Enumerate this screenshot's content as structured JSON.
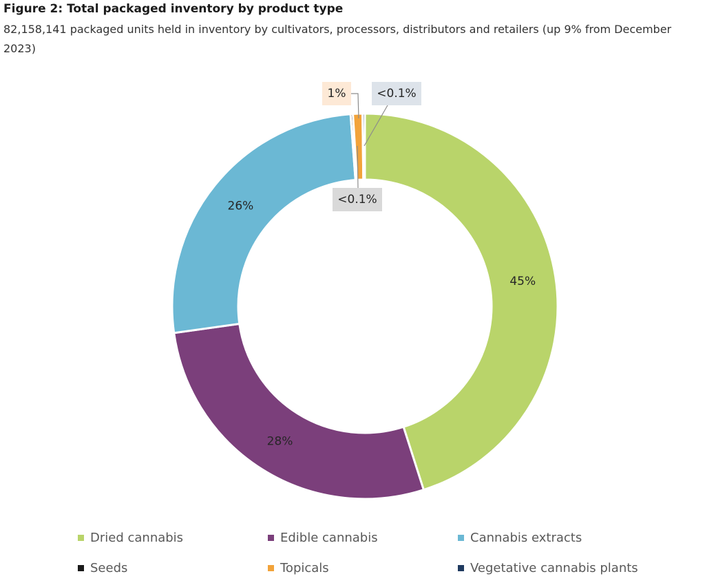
{
  "figure": {
    "title": "Figure 2: Total packaged inventory by product type",
    "subtitle": "82,158,141 packaged units held in inventory by cultivators, processors, distributors and retailers (up 9% from December 2023)"
  },
  "chart_data": {
    "type": "pie",
    "donut": true,
    "title": "Figure 2: Total packaged inventory by product type",
    "legend_position": "bottom",
    "series": [
      {
        "name": "Dried cannabis",
        "value": 45.2,
        "label": "45%",
        "color": "#b9d46a"
      },
      {
        "name": "Edible cannabis",
        "value": 27.8,
        "label": "28%",
        "color": "#7b3f7b"
      },
      {
        "name": "Cannabis extracts",
        "value": 26.1,
        "label": "26%",
        "color": "#6bb8d4"
      },
      {
        "name": "Seeds",
        "value": 0.05,
        "label": "<0.1%",
        "color": "#1a1a1a"
      },
      {
        "name": "Topicals",
        "value": 0.8,
        "label": "1%",
        "color": "#f2a33a"
      },
      {
        "name": "Vegetative cannabis plants",
        "value": 0.05,
        "label": "<0.1%",
        "color": "#1f3a5f"
      }
    ],
    "callout_colors": {
      "Seeds": "#d9d9d9",
      "Topicals": "#fde9d6",
      "Vegetative cannabis plants": "#dde3ea"
    },
    "label_color": "#262626",
    "leader_line_color": "#8c8c8c"
  }
}
